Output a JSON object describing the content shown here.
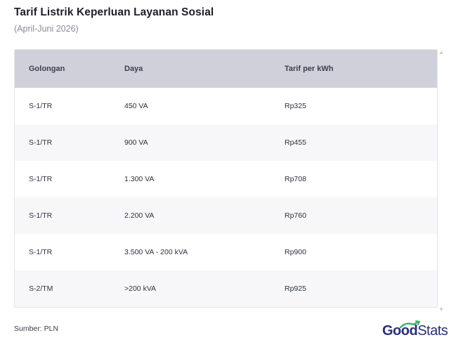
{
  "header": {
    "title": "Tarif Listrik Keperluan Layanan Sosial",
    "subtitle": "(April-Juni 2026)"
  },
  "chart_data": {
    "type": "table",
    "columns": [
      "Golongan",
      "Daya",
      "Tarif per kWh"
    ],
    "rows": [
      [
        "S-1/TR",
        "450 VA",
        "Rp325"
      ],
      [
        "S-1/TR",
        "900 VA",
        "Rp455"
      ],
      [
        "S-1/TR",
        "1.300 VA",
        "Rp708"
      ],
      [
        "S-1/TR",
        "2.200 VA",
        "Rp760"
      ],
      [
        "S-1/TR",
        "3.500 VA - 200 kVA",
        "Rp900"
      ],
      [
        "S-2/TM",
        ">200 kVA",
        "Rp925"
      ]
    ]
  },
  "footer": {
    "source": "Sumber: PLN",
    "logo_good": "Good",
    "logo_stats": "Stats"
  },
  "colors": {
    "header_bg": "#cfd0da",
    "logo_navy": "#2b2f76",
    "logo_accent": "#3fb36b"
  },
  "icons": {
    "scroll_up": "scroll-up-arrow",
    "scroll_down": "scroll-down-arrow"
  }
}
